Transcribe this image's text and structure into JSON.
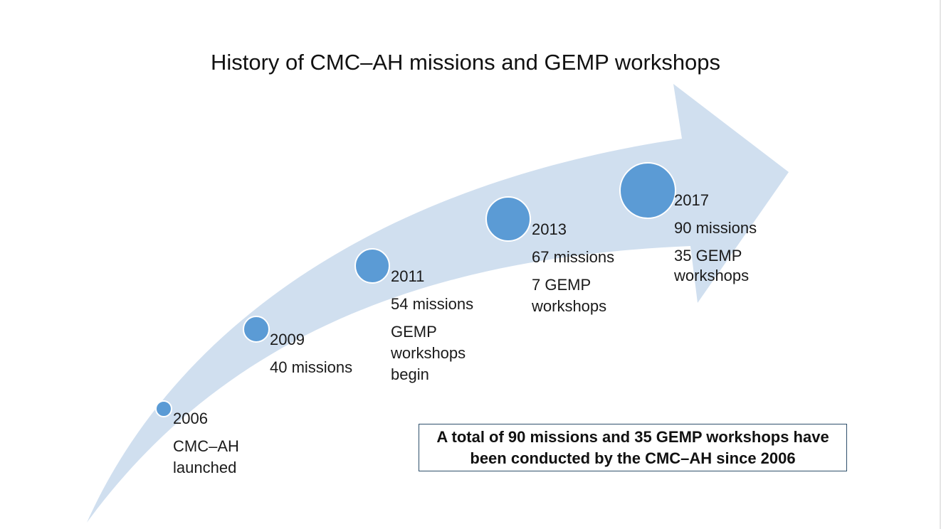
{
  "title": "History of CMC–AH missions and GEMP workshops",
  "colors": {
    "arrow_fill": "#d0dfef",
    "milestone_dot": "#5b9bd5",
    "box_border": "#2e4f6b"
  },
  "milestones": [
    {
      "year": "2006",
      "lines": [
        "CMC–AH",
        "launched"
      ]
    },
    {
      "year": "2009",
      "lines": [
        "40 missions"
      ]
    },
    {
      "year": "2011",
      "lines": [
        "54 missions",
        "GEMP",
        "workshops",
        "begin"
      ]
    },
    {
      "year": "2013",
      "lines": [
        "67 missions",
        "7 GEMP",
        "workshops"
      ]
    },
    {
      "year": "2017",
      "lines": [
        "90 missions",
        "35 GEMP",
        "workshops"
      ]
    }
  ],
  "summary": {
    "line1": "A total of 90 missions and 35 GEMP workshops have",
    "line2": "been conducted by the CMC–AH since 2006"
  }
}
